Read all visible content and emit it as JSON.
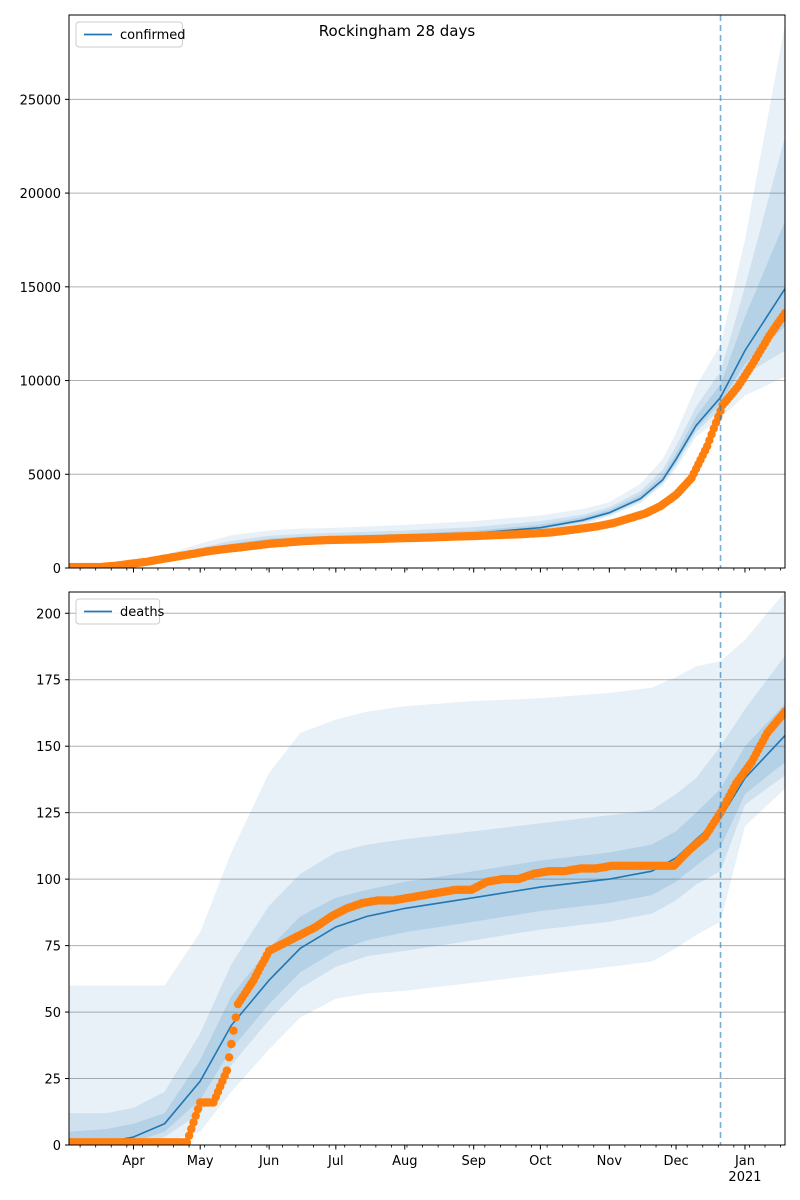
{
  "figure": {
    "title": "Rockingham 28 days"
  },
  "colors": {
    "model": "#1f77b4",
    "observed": "#ff7f0e",
    "band": "#1f77b4",
    "grid": "#b0b0b0",
    "vline": "#1f77b4"
  },
  "chart_data": [
    {
      "type": "line",
      "legend": "confirmed",
      "legend_placement": "top-left",
      "grid": "horizontal",
      "title": "",
      "xlabel": "",
      "ylabel": "",
      "ylim": [
        0,
        29500
      ],
      "yticks": [
        0,
        5000,
        10000,
        15000,
        20000,
        25000
      ],
      "xlim": [
        "2020-03-03",
        "2021-01-19"
      ],
      "xtick_labels": [
        "Apr",
        "May",
        "Jun",
        "Jul",
        "Aug",
        "Sep",
        "Oct",
        "Nov",
        "Dec",
        "Jan\n2021"
      ],
      "forecast_start": "2020-12-21",
      "model": {
        "x": [
          "2020-03-03",
          "2020-03-20",
          "2020-04-01",
          "2020-04-15",
          "2020-05-01",
          "2020-05-15",
          "2020-06-01",
          "2020-06-15",
          "2020-07-01",
          "2020-08-01",
          "2020-09-01",
          "2020-10-01",
          "2020-10-20",
          "2020-11-01",
          "2020-11-15",
          "2020-11-25",
          "2020-12-01",
          "2020-12-10",
          "2020-12-21",
          "2021-01-01",
          "2021-01-19"
        ],
        "median": [
          0,
          20,
          150,
          400,
          850,
          1200,
          1450,
          1550,
          1600,
          1700,
          1850,
          2150,
          2550,
          2950,
          3700,
          4700,
          5800,
          7600,
          9100,
          11600,
          14900
        ],
        "bands": [
          {
            "low": [
              0,
              10,
              100,
              300,
              650,
              950,
              1150,
              1250,
              1300,
              1400,
              1550,
              1850,
              2300,
              2750,
              3450,
              4400,
              5300,
              7000,
              8000,
              9200,
              10200
            ],
            "high": [
              0,
              60,
              280,
              700,
              1300,
              1750,
              2000,
              2100,
              2150,
              2300,
              2500,
              2800,
              3150,
              3500,
              4500,
              5800,
              7200,
              9700,
              11900,
              17500,
              29000
            ]
          },
          {
            "low": [
              0,
              15,
              120,
              340,
              730,
              1060,
              1280,
              1380,
              1430,
              1530,
              1680,
              1980,
              2400,
              2820,
              3550,
              4520,
              5500,
              7250,
              8500,
              10300,
              11600
            ],
            "high": [
              0,
              40,
              220,
              560,
              1070,
              1450,
              1720,
              1820,
              1870,
              2000,
              2180,
              2500,
              2850,
              3240,
              4100,
              5250,
              6500,
              8600,
              10500,
              15000,
              23000
            ]
          },
          {
            "low": [
              0,
              18,
              135,
              370,
              790,
              1130,
              1360,
              1460,
              1510,
              1610,
              1760,
              2060,
              2470,
              2880,
              3620,
              4610,
              5650,
              7420,
              8800,
              10900,
              12900
            ],
            "high": [
              0,
              28,
              180,
              460,
              940,
              1300,
              1570,
              1670,
              1720,
              1830,
              1990,
              2310,
              2700,
              3100,
              3900,
              4950,
              6100,
              8100,
              9800,
              13400,
              18500
            ]
          }
        ]
      },
      "observed": {
        "x": [
          "2020-03-03",
          "2020-03-10",
          "2020-03-17",
          "2020-03-24",
          "2020-03-31",
          "2020-04-07",
          "2020-04-14",
          "2020-04-21",
          "2020-04-28",
          "2020-05-05",
          "2020-05-12",
          "2020-05-19",
          "2020-05-26",
          "2020-06-02",
          "2020-06-09",
          "2020-06-16",
          "2020-06-23",
          "2020-06-30",
          "2020-07-07",
          "2020-07-14",
          "2020-07-21",
          "2020-07-28",
          "2020-08-04",
          "2020-08-11",
          "2020-08-18",
          "2020-08-25",
          "2020-09-01",
          "2020-09-08",
          "2020-09-15",
          "2020-09-22",
          "2020-09-29",
          "2020-10-06",
          "2020-10-13",
          "2020-10-20",
          "2020-10-27",
          "2020-11-03",
          "2020-11-10",
          "2020-11-17",
          "2020-11-24",
          "2020-12-01",
          "2020-12-08",
          "2020-12-15",
          "2020-12-22",
          "2020-12-29",
          "2021-01-05",
          "2021-01-12",
          "2021-01-19"
        ],
        "values": [
          50,
          50,
          50,
          120,
          230,
          330,
          480,
          620,
          760,
          900,
          1010,
          1100,
          1200,
          1300,
          1360,
          1430,
          1470,
          1500,
          1510,
          1530,
          1550,
          1580,
          1600,
          1620,
          1650,
          1680,
          1700,
          1740,
          1770,
          1800,
          1850,
          1900,
          2000,
          2110,
          2230,
          2400,
          2650,
          2900,
          3300,
          3900,
          4800,
          6500,
          8700,
          9700,
          11000,
          12400,
          13600
        ]
      }
    },
    {
      "type": "line",
      "legend": "deaths",
      "legend_placement": "top-left",
      "grid": "horizontal",
      "title": "",
      "xlabel": "",
      "ylabel": "",
      "ylim": [
        0,
        208
      ],
      "yticks": [
        0,
        25,
        50,
        75,
        100,
        125,
        150,
        175,
        200
      ],
      "xlim": [
        "2020-03-03",
        "2021-01-19"
      ],
      "xtick_labels": [
        "Apr",
        "May",
        "Jun",
        "Jul",
        "Aug",
        "Sep",
        "Oct",
        "Nov",
        "Dec",
        "Jan\n2021"
      ],
      "forecast_start": "2020-12-21",
      "model": {
        "x": [
          "2020-03-03",
          "2020-03-20",
          "2020-04-01",
          "2020-04-15",
          "2020-05-01",
          "2020-05-15",
          "2020-06-01",
          "2020-06-15",
          "2020-07-01",
          "2020-07-15",
          "2020-08-01",
          "2020-09-01",
          "2020-10-01",
          "2020-11-01",
          "2020-11-20",
          "2020-12-01",
          "2020-12-10",
          "2020-12-21",
          "2021-01-01",
          "2021-01-19"
        ],
        "median": [
          0,
          1,
          3,
          8,
          24,
          45,
          62,
          74,
          82,
          86,
          89,
          93,
          97,
          100,
          103,
          108,
          115,
          123,
          138,
          154
        ],
        "bands": [
          {
            "low": [
              0,
              0,
              0,
              1,
              5,
              20,
              36,
              48,
              55,
              57,
              58,
              61,
              64,
              67,
              69,
              74,
              79,
              84,
              120,
              134
            ],
            "high": [
              60,
              60,
              60,
              60,
              80,
              110,
              140,
              155,
              160,
              163,
              165,
              167,
              168,
              170,
              172,
              176,
              180,
              182,
              190,
              208
            ]
          },
          {
            "low": [
              0,
              0,
              0,
              3,
              12,
              30,
              47,
              59,
              67,
              71,
              73,
              77,
              81,
              84,
              87,
              92,
              98,
              103,
              128,
              139
            ],
            "high": [
              12,
              12,
              14,
              20,
              42,
              68,
              90,
              102,
              110,
              113,
              115,
              118,
              121,
              124,
              126,
              132,
              138,
              150,
              164,
              184
            ]
          },
          {
            "low": [
              0,
              0,
              1,
              5,
              17,
              36,
              53,
              65,
              73,
              77,
              80,
              84,
              88,
              91,
              94,
              99,
              105,
              112,
              132,
              144
            ],
            "high": [
              5,
              6,
              8,
              12,
              32,
              56,
              74,
              86,
              93,
              96,
              99,
              103,
              107,
              110,
              113,
              118,
              125,
              134,
              150,
              166
            ]
          }
        ]
      },
      "observed": {
        "x": [
          "2020-03-03",
          "2020-04-25",
          "2020-05-01",
          "2020-05-07",
          "2020-05-13",
          "2020-05-18",
          "2020-05-25",
          "2020-06-01",
          "2020-06-08",
          "2020-06-15",
          "2020-06-22",
          "2020-06-29",
          "2020-07-06",
          "2020-07-13",
          "2020-07-20",
          "2020-07-27",
          "2020-08-03",
          "2020-08-10",
          "2020-08-17",
          "2020-08-24",
          "2020-08-31",
          "2020-09-07",
          "2020-09-14",
          "2020-09-21",
          "2020-09-28",
          "2020-10-05",
          "2020-10-12",
          "2020-10-19",
          "2020-10-26",
          "2020-11-02",
          "2020-11-09",
          "2020-11-16",
          "2020-11-23",
          "2020-11-30",
          "2020-12-07",
          "2020-12-14",
          "2020-12-21",
          "2020-12-28",
          "2021-01-04",
          "2021-01-11",
          "2021-01-19"
        ],
        "values": [
          1,
          1,
          16,
          16,
          28,
          53,
          62,
          73,
          76,
          79,
          82,
          86,
          89,
          91,
          92,
          92,
          93,
          94,
          95,
          96,
          96,
          99,
          100,
          100,
          102,
          103,
          103,
          104,
          104,
          105,
          105,
          105,
          105,
          105,
          111,
          116,
          125,
          136,
          144,
          155,
          163
        ]
      }
    }
  ]
}
